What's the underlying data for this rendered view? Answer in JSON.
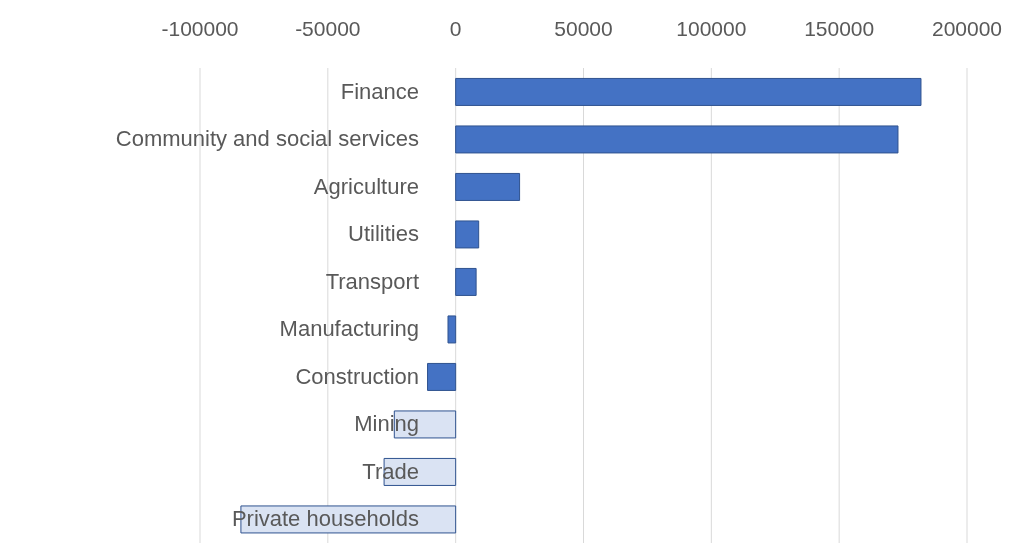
{
  "chart_data": {
    "type": "bar",
    "orientation": "horizontal",
    "categories": [
      "Finance",
      "Community and social services",
      "Agriculture",
      "Utilities",
      "Transport",
      "Manufacturing",
      "Construction",
      "Mining",
      "Trade",
      "Private households"
    ],
    "values": [
      182000,
      173000,
      25000,
      9000,
      8000,
      -3000,
      -11000,
      -24000,
      -28000,
      -84000
    ],
    "colors": [
      "#4472c4",
      "#4472c4",
      "#4472c4",
      "#4472c4",
      "#4472c4",
      "#4472c4",
      "#4472c4",
      "#dae3f3",
      "#dae3f3",
      "#dae3f3"
    ],
    "xlim": [
      -100000,
      200000
    ],
    "xticks": [
      -100000,
      -50000,
      0,
      50000,
      100000,
      150000,
      200000
    ],
    "grid": "x"
  }
}
